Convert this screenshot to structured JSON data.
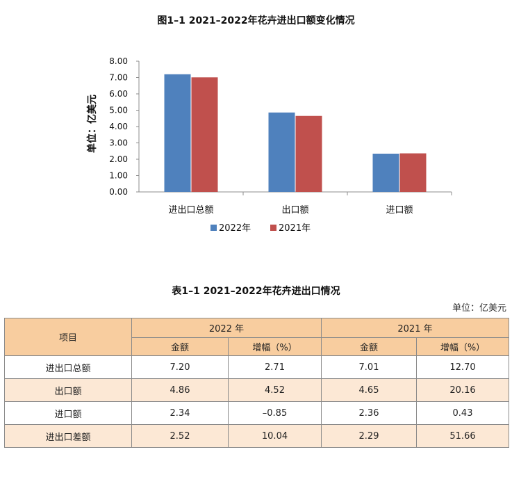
{
  "figure": {
    "title": "图1–1  2021–2022年花卉进出口额变化情况"
  },
  "chart_data": {
    "type": "bar",
    "title": "图1–1  2021–2022年花卉进出口额变化情况",
    "ylabel": "单位：亿美元",
    "xlabel": "",
    "categories": [
      "进出口总额",
      "出口额",
      "进口额"
    ],
    "series": [
      {
        "name": "2022年",
        "color": "#4f81bd",
        "values": [
          7.2,
          4.86,
          2.34
        ]
      },
      {
        "name": "2021年",
        "color": "#c0504d",
        "values": [
          7.01,
          4.65,
          2.36
        ]
      }
    ],
    "ylim": [
      0,
      8
    ],
    "yticks": [
      "0.00",
      "1.00",
      "2.00",
      "3.00",
      "4.00",
      "5.00",
      "6.00",
      "7.00",
      "8.00"
    ],
    "grid": false,
    "legend": "bottom"
  },
  "table": {
    "title": "表1–1  2021–2022年花卉进出口情况",
    "unit": "单位：亿美元",
    "header": {
      "item": "项目",
      "year1": "2022 年",
      "year2": "2021 年",
      "amount": "金额",
      "growth": "增幅（%）"
    },
    "rows": [
      {
        "item": "进出口总额",
        "a22": "7.20",
        "g22": "2.71",
        "a21": "7.01",
        "g21": "12.70"
      },
      {
        "item": "出口额",
        "a22": "4.86",
        "g22": "4.52",
        "a21": "4.65",
        "g21": "20.16"
      },
      {
        "item": "进口额",
        "a22": "2.34",
        "g22": "–0.85",
        "a21": "2.36",
        "g21": "0.43"
      },
      {
        "item": "进出口差额",
        "a22": "2.52",
        "g22": "10.04",
        "a21": "2.29",
        "g21": "51.66"
      }
    ]
  }
}
